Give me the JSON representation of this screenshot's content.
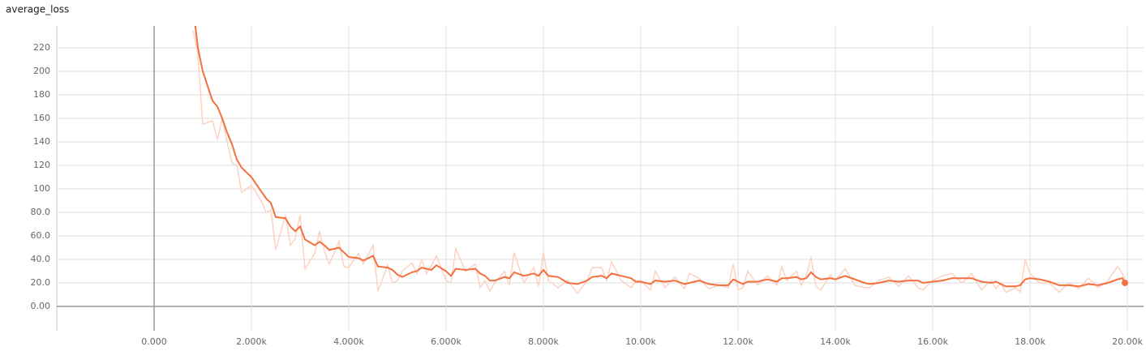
{
  "chart_data": {
    "type": "line",
    "title": "average_loss",
    "x": [
      800,
      900,
      1000,
      1200,
      1300,
      1400,
      1500,
      1600,
      1700,
      1800,
      2000,
      2200,
      2300,
      2400,
      2500,
      2700,
      2800,
      2900,
      3000,
      3100,
      3300,
      3400,
      3500,
      3600,
      3800,
      3900,
      4000,
      4200,
      4300,
      4500,
      4600,
      4800,
      4900,
      5000,
      5100,
      5300,
      5400,
      5500,
      5600,
      5700,
      5800,
      6000,
      6100,
      6200,
      6400,
      6600,
      6700,
      6800,
      6900,
      7000,
      7200,
      7300,
      7400,
      7600,
      7800,
      7900,
      8000,
      8100,
      8300,
      8500,
      8700,
      8900,
      9000,
      9200,
      9300,
      9400,
      9600,
      9800,
      9900,
      10000,
      10200,
      10300,
      10500,
      10700,
      10900,
      11000,
      11200,
      11400,
      11600,
      11800,
      11900,
      12000,
      12100,
      12200,
      12400,
      12600,
      12800,
      12900,
      13000,
      13200,
      13300,
      13400,
      13500,
      13600,
      13700,
      13900,
      14000,
      14200,
      14400,
      14600,
      14700,
      14900,
      15100,
      15300,
      15500,
      15700,
      15800,
      16000,
      16200,
      16400,
      16600,
      16800,
      17000,
      17200,
      17300,
      17400,
      17500,
      17700,
      17800,
      17900,
      18000,
      18200,
      18400,
      18600,
      18800,
      19000,
      19200,
      19400,
      19600,
      19800,
      19900,
      19950
    ],
    "series": [
      {
        "color": "#fcd3c3",
        "values": [
          235,
          215,
          155,
          158,
          142,
          160,
          140,
          122,
          120,
          97,
          103,
          90,
          80,
          82,
          48,
          78,
          52,
          58,
          78,
          32,
          45,
          64,
          47,
          36,
          55,
          34,
          33,
          45,
          36,
          52,
          13,
          35,
          20,
          22,
          30,
          37,
          28,
          40,
          28,
          35,
          43,
          22,
          20,
          49,
          30,
          36,
          16,
          22,
          13,
          20,
          30,
          18,
          46,
          20,
          33,
          17,
          46,
          22,
          16,
          22,
          11,
          22,
          33,
          33,
          22,
          38,
          22,
          16,
          21,
          22,
          14,
          30,
          16,
          25,
          15,
          28,
          24,
          15,
          18,
          16,
          36,
          14,
          16,
          30,
          18,
          26,
          18,
          34,
          22,
          30,
          18,
          26,
          42,
          17,
          14,
          27,
          22,
          32,
          18,
          16,
          16,
          22,
          25,
          17,
          26,
          16,
          14,
          22,
          26,
          28,
          20,
          28,
          14,
          22,
          15,
          20,
          12,
          16,
          12,
          40,
          28,
          20,
          20,
          12,
          20,
          15,
          24,
          16,
          22,
          34,
          28,
          23
        ]
      },
      {
        "color": "#f4703f",
        "values": [
          255,
          220,
          200,
          175,
          170,
          160,
          148,
          138,
          125,
          118,
          110,
          98,
          92,
          88,
          76,
          75,
          68,
          64,
          68,
          57,
          52,
          55,
          52,
          48,
          50,
          46,
          42,
          41,
          39,
          43,
          34,
          33,
          31,
          27,
          25,
          29,
          30,
          33,
          32,
          31,
          35,
          30,
          26,
          32,
          31,
          32,
          28,
          26,
          22,
          22,
          25,
          24,
          29,
          26,
          28,
          26,
          31,
          26,
          25,
          20,
          19,
          22,
          25,
          26,
          24,
          28,
          26,
          24,
          21,
          21,
          19,
          22,
          21,
          22,
          19,
          20,
          22,
          19,
          18,
          18,
          23,
          21,
          19,
          21,
          21,
          23,
          21,
          24,
          24,
          25,
          23,
          24,
          29,
          25,
          23,
          24,
          23,
          26,
          23,
          20,
          19,
          20,
          22,
          21,
          22,
          22,
          20,
          21,
          22,
          24,
          24,
          24,
          21,
          20,
          21,
          19,
          17,
          17,
          18,
          23,
          24,
          23,
          21,
          18,
          18,
          17,
          19,
          18,
          20,
          23,
          24,
          20
        ]
      }
    ],
    "xlim": [
      -2000,
      20333
    ],
    "ylim": [
      -20.7,
      238.6
    ],
    "xticks": [
      {
        "value": 0,
        "label": "0.000"
      },
      {
        "value": 2000,
        "label": "2.000k"
      },
      {
        "value": 4000,
        "label": "4.000k"
      },
      {
        "value": 6000,
        "label": "6.000k"
      },
      {
        "value": 8000,
        "label": "8.000k"
      },
      {
        "value": 10000,
        "label": "10.00k"
      },
      {
        "value": 12000,
        "label": "12.00k"
      },
      {
        "value": 14000,
        "label": "14.00k"
      },
      {
        "value": 16000,
        "label": "16.00k"
      },
      {
        "value": 18000,
        "label": "18.00k"
      },
      {
        "value": 20000,
        "label": "20.00k"
      }
    ],
    "yticks": [
      {
        "value": 0,
        "label": "0.00"
      },
      {
        "value": 20,
        "label": "20.0"
      },
      {
        "value": 40,
        "label": "40.0"
      },
      {
        "value": 60,
        "label": "60.0"
      },
      {
        "value": 80,
        "label": "80.0"
      },
      100,
      120,
      140,
      160,
      180,
      200,
      220
    ],
    "grid": true
  }
}
